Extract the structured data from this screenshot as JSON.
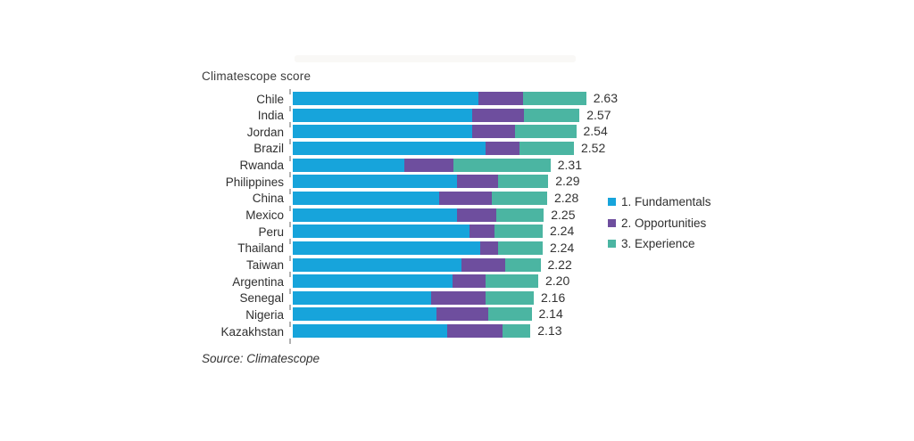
{
  "chart_data": {
    "type": "bar",
    "stacked": true,
    "orientation": "horizontal",
    "title": "Climatescope score",
    "source": "Source: Climatescope",
    "grid": false,
    "legend_position": "right",
    "xlim": [
      0,
      2.63
    ],
    "categories": [
      "Chile",
      "India",
      "Jordan",
      "Brazil",
      "Rwanda",
      "Philippines",
      "China",
      "Mexico",
      "Peru",
      "Thailand",
      "Taiwan",
      "Argentina",
      "Senegal",
      "Nigeria",
      "Kazakhstan"
    ],
    "series": [
      {
        "name": "1. Fundamentals",
        "color": "#17a4db",
        "values": [
          1.66,
          1.61,
          1.61,
          1.73,
          1.0,
          1.47,
          1.31,
          1.47,
          1.58,
          1.68,
          1.51,
          1.43,
          1.24,
          1.29,
          1.38
        ]
      },
      {
        "name": "2. Opportunities",
        "color": "#6e4e9e",
        "values": [
          0.4,
          0.46,
          0.38,
          0.3,
          0.44,
          0.37,
          0.47,
          0.35,
          0.23,
          0.16,
          0.39,
          0.3,
          0.49,
          0.46,
          0.5
        ]
      },
      {
        "name": "3. Experience",
        "color": "#4bb5a2",
        "values": [
          0.57,
          0.5,
          0.55,
          0.49,
          0.87,
          0.45,
          0.5,
          0.43,
          0.43,
          0.4,
          0.32,
          0.47,
          0.43,
          0.39,
          0.25
        ]
      }
    ],
    "totals": [
      2.63,
      2.57,
      2.54,
      2.52,
      2.31,
      2.29,
      2.28,
      2.25,
      2.24,
      2.24,
      2.22,
      2.2,
      2.16,
      2.14,
      2.13
    ],
    "total_labels": [
      "2.63",
      "2.57",
      "2.54",
      "2.52",
      "2.31",
      "2.29",
      "2.28",
      "2.25",
      "2.24",
      "2.24",
      "2.22",
      "2.20",
      "2.16",
      "2.14",
      "2.13"
    ],
    "axis_tick_color": "#b1b1b1"
  }
}
